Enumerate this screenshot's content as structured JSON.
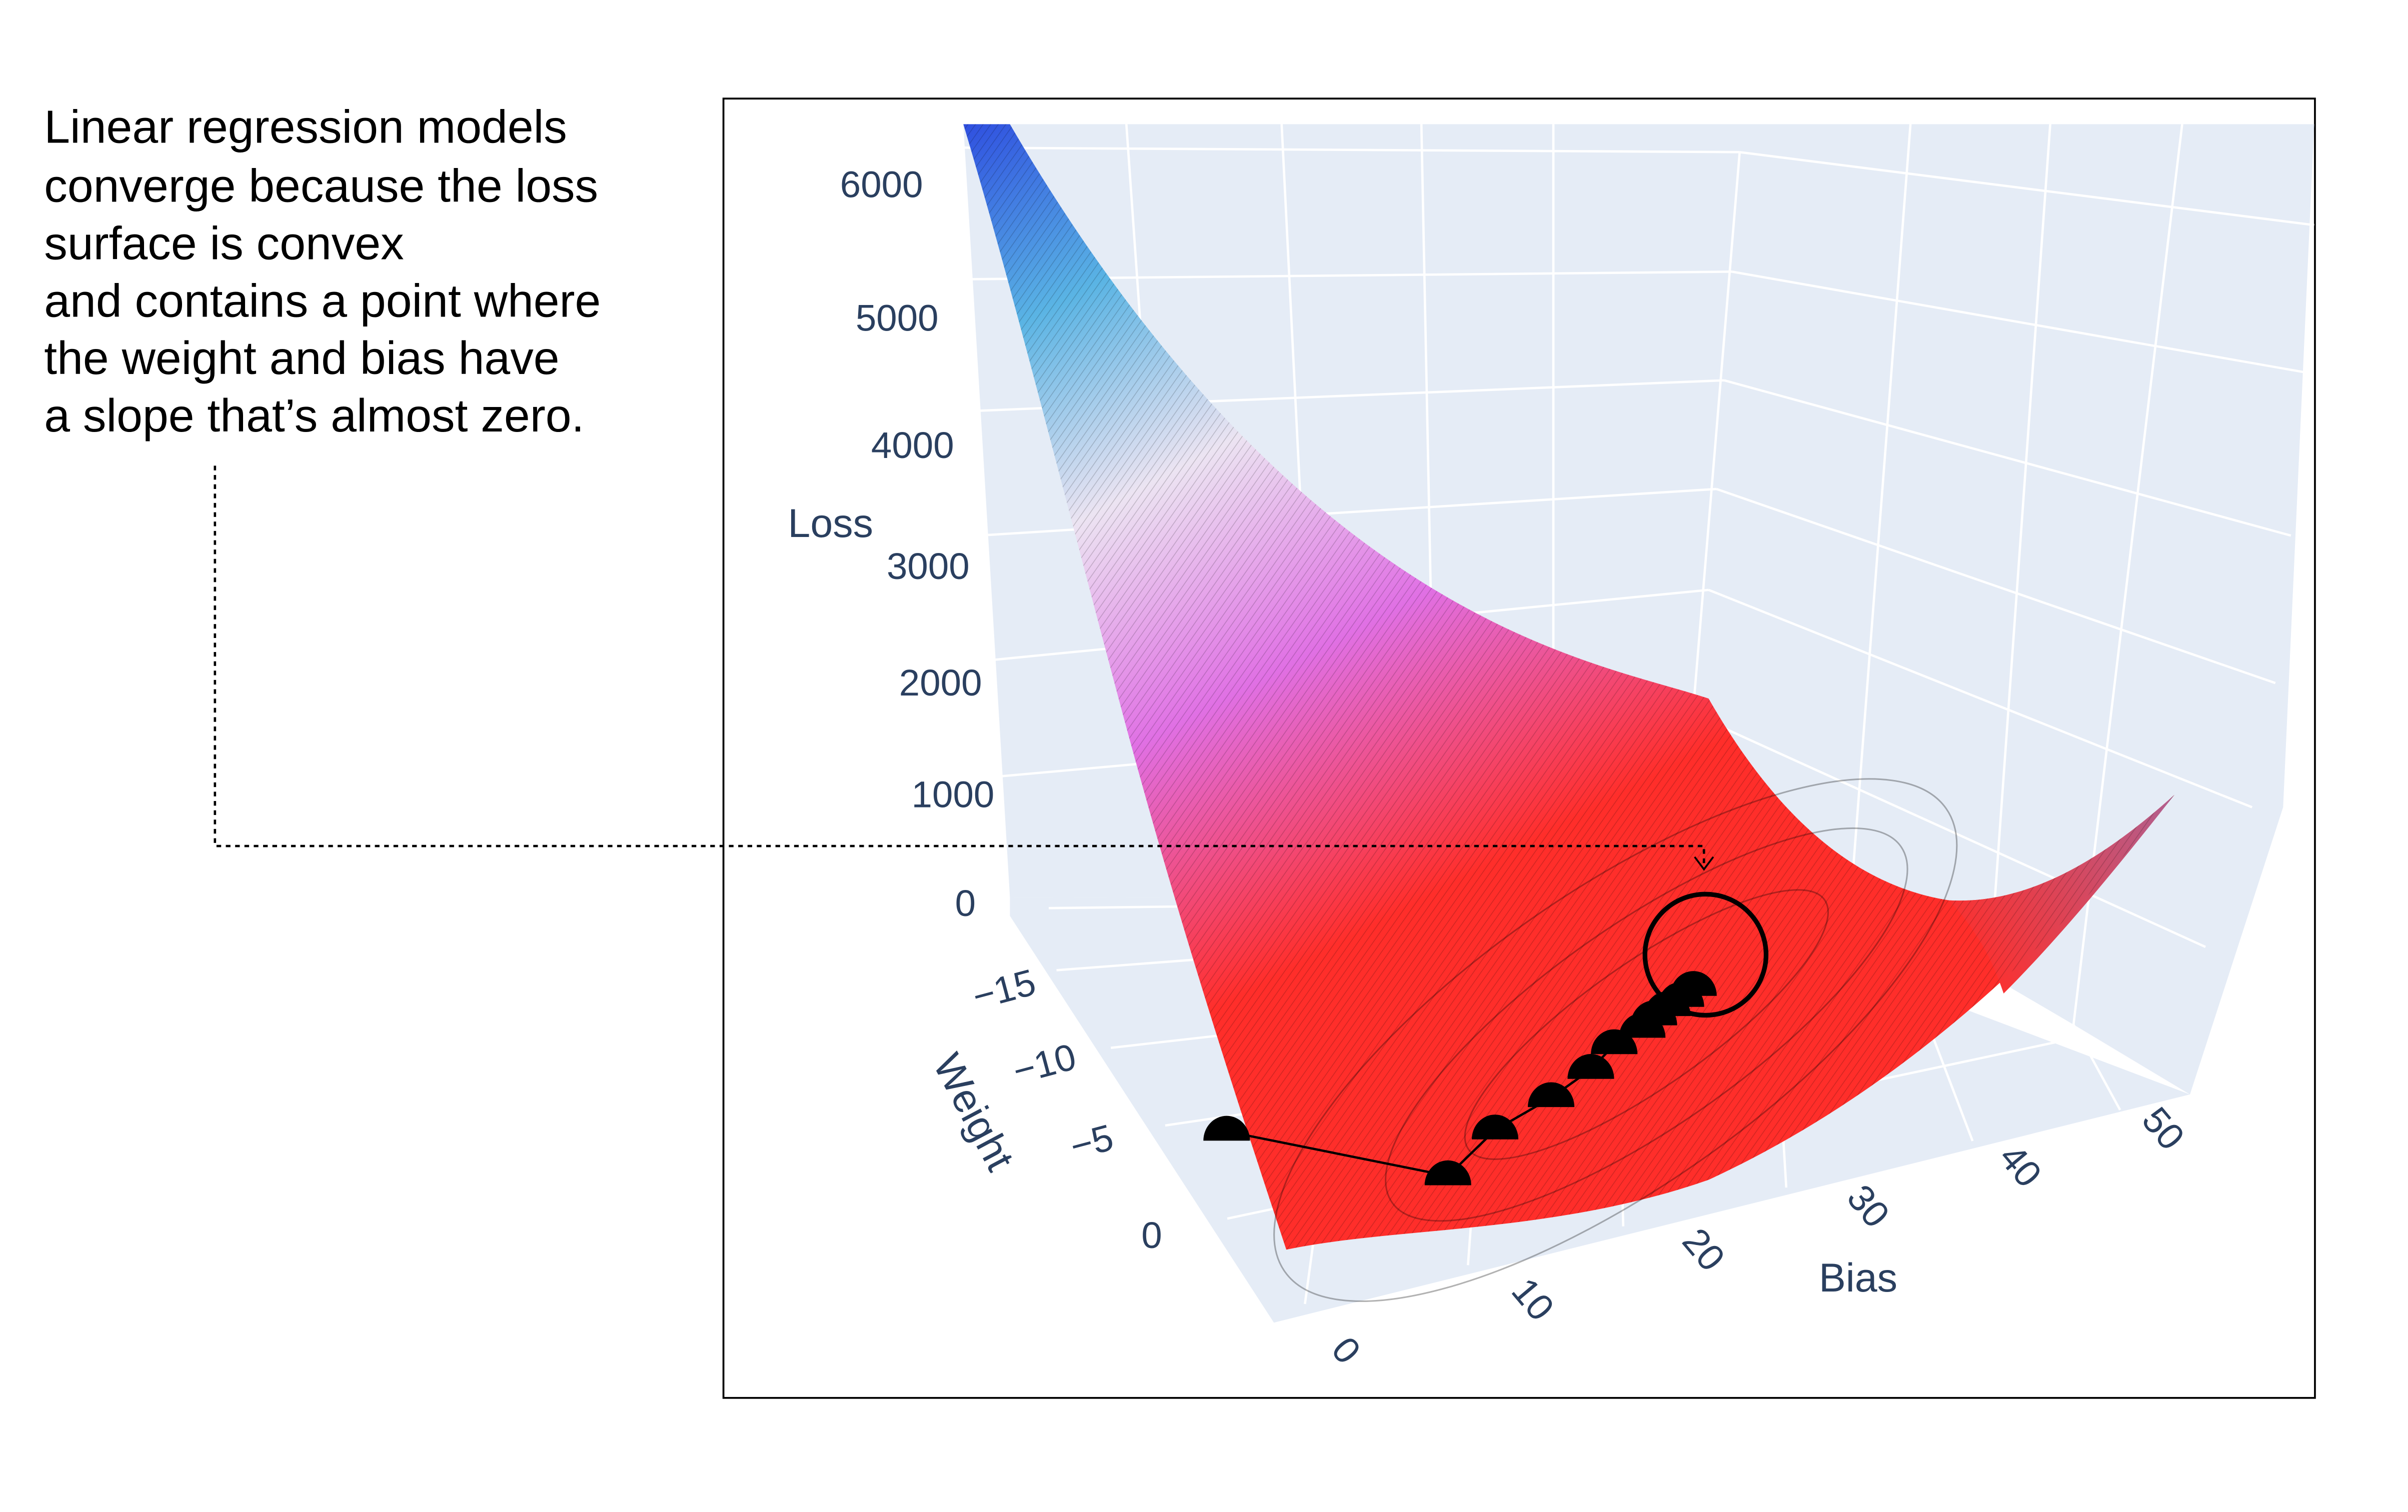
{
  "annotation": {
    "lines": [
      "Linear regression models",
      "converge because the loss",
      "surface is convex",
      "and contains a point where",
      "the weight  and bias have",
      "a slope that’s almost zero."
    ]
  },
  "chart_data": {
    "type": "surface",
    "title": "",
    "axes": {
      "x": {
        "label": "Bias",
        "ticks": [
          "0",
          "10",
          "20",
          "30",
          "40",
          "50"
        ],
        "range": [
          0,
          50
        ]
      },
      "y": {
        "label": "Weight",
        "ticks": [
          "−15",
          "−10",
          "−5",
          "0"
        ],
        "range": [
          -17,
          0
        ]
      },
      "z": {
        "label": "Loss",
        "ticks": [
          "0",
          "1000",
          "2000",
          "3000",
          "4000",
          "5000",
          "6000"
        ],
        "range": [
          0,
          6400
        ]
      }
    },
    "colorscale": [
      "#2f4fe0",
      "#5ab4e4",
      "#ece4f2",
      "#e070e4",
      "#ff2e2a"
    ],
    "wall_color": "#e5ecf6",
    "grid": true,
    "descent_path": {
      "bias": [
        0,
        12,
        16,
        20,
        23,
        25,
        27,
        28,
        29,
        30,
        31
      ],
      "weight": [
        -5,
        -3,
        -5,
        -6,
        -7,
        -8,
        -8.5,
        -9,
        -9.3,
        -9.6,
        -10
      ],
      "loss": [
        600,
        100,
        60,
        50,
        40,
        35,
        32,
        30,
        30,
        30,
        30
      ],
      "marker_color": "#000000"
    }
  }
}
